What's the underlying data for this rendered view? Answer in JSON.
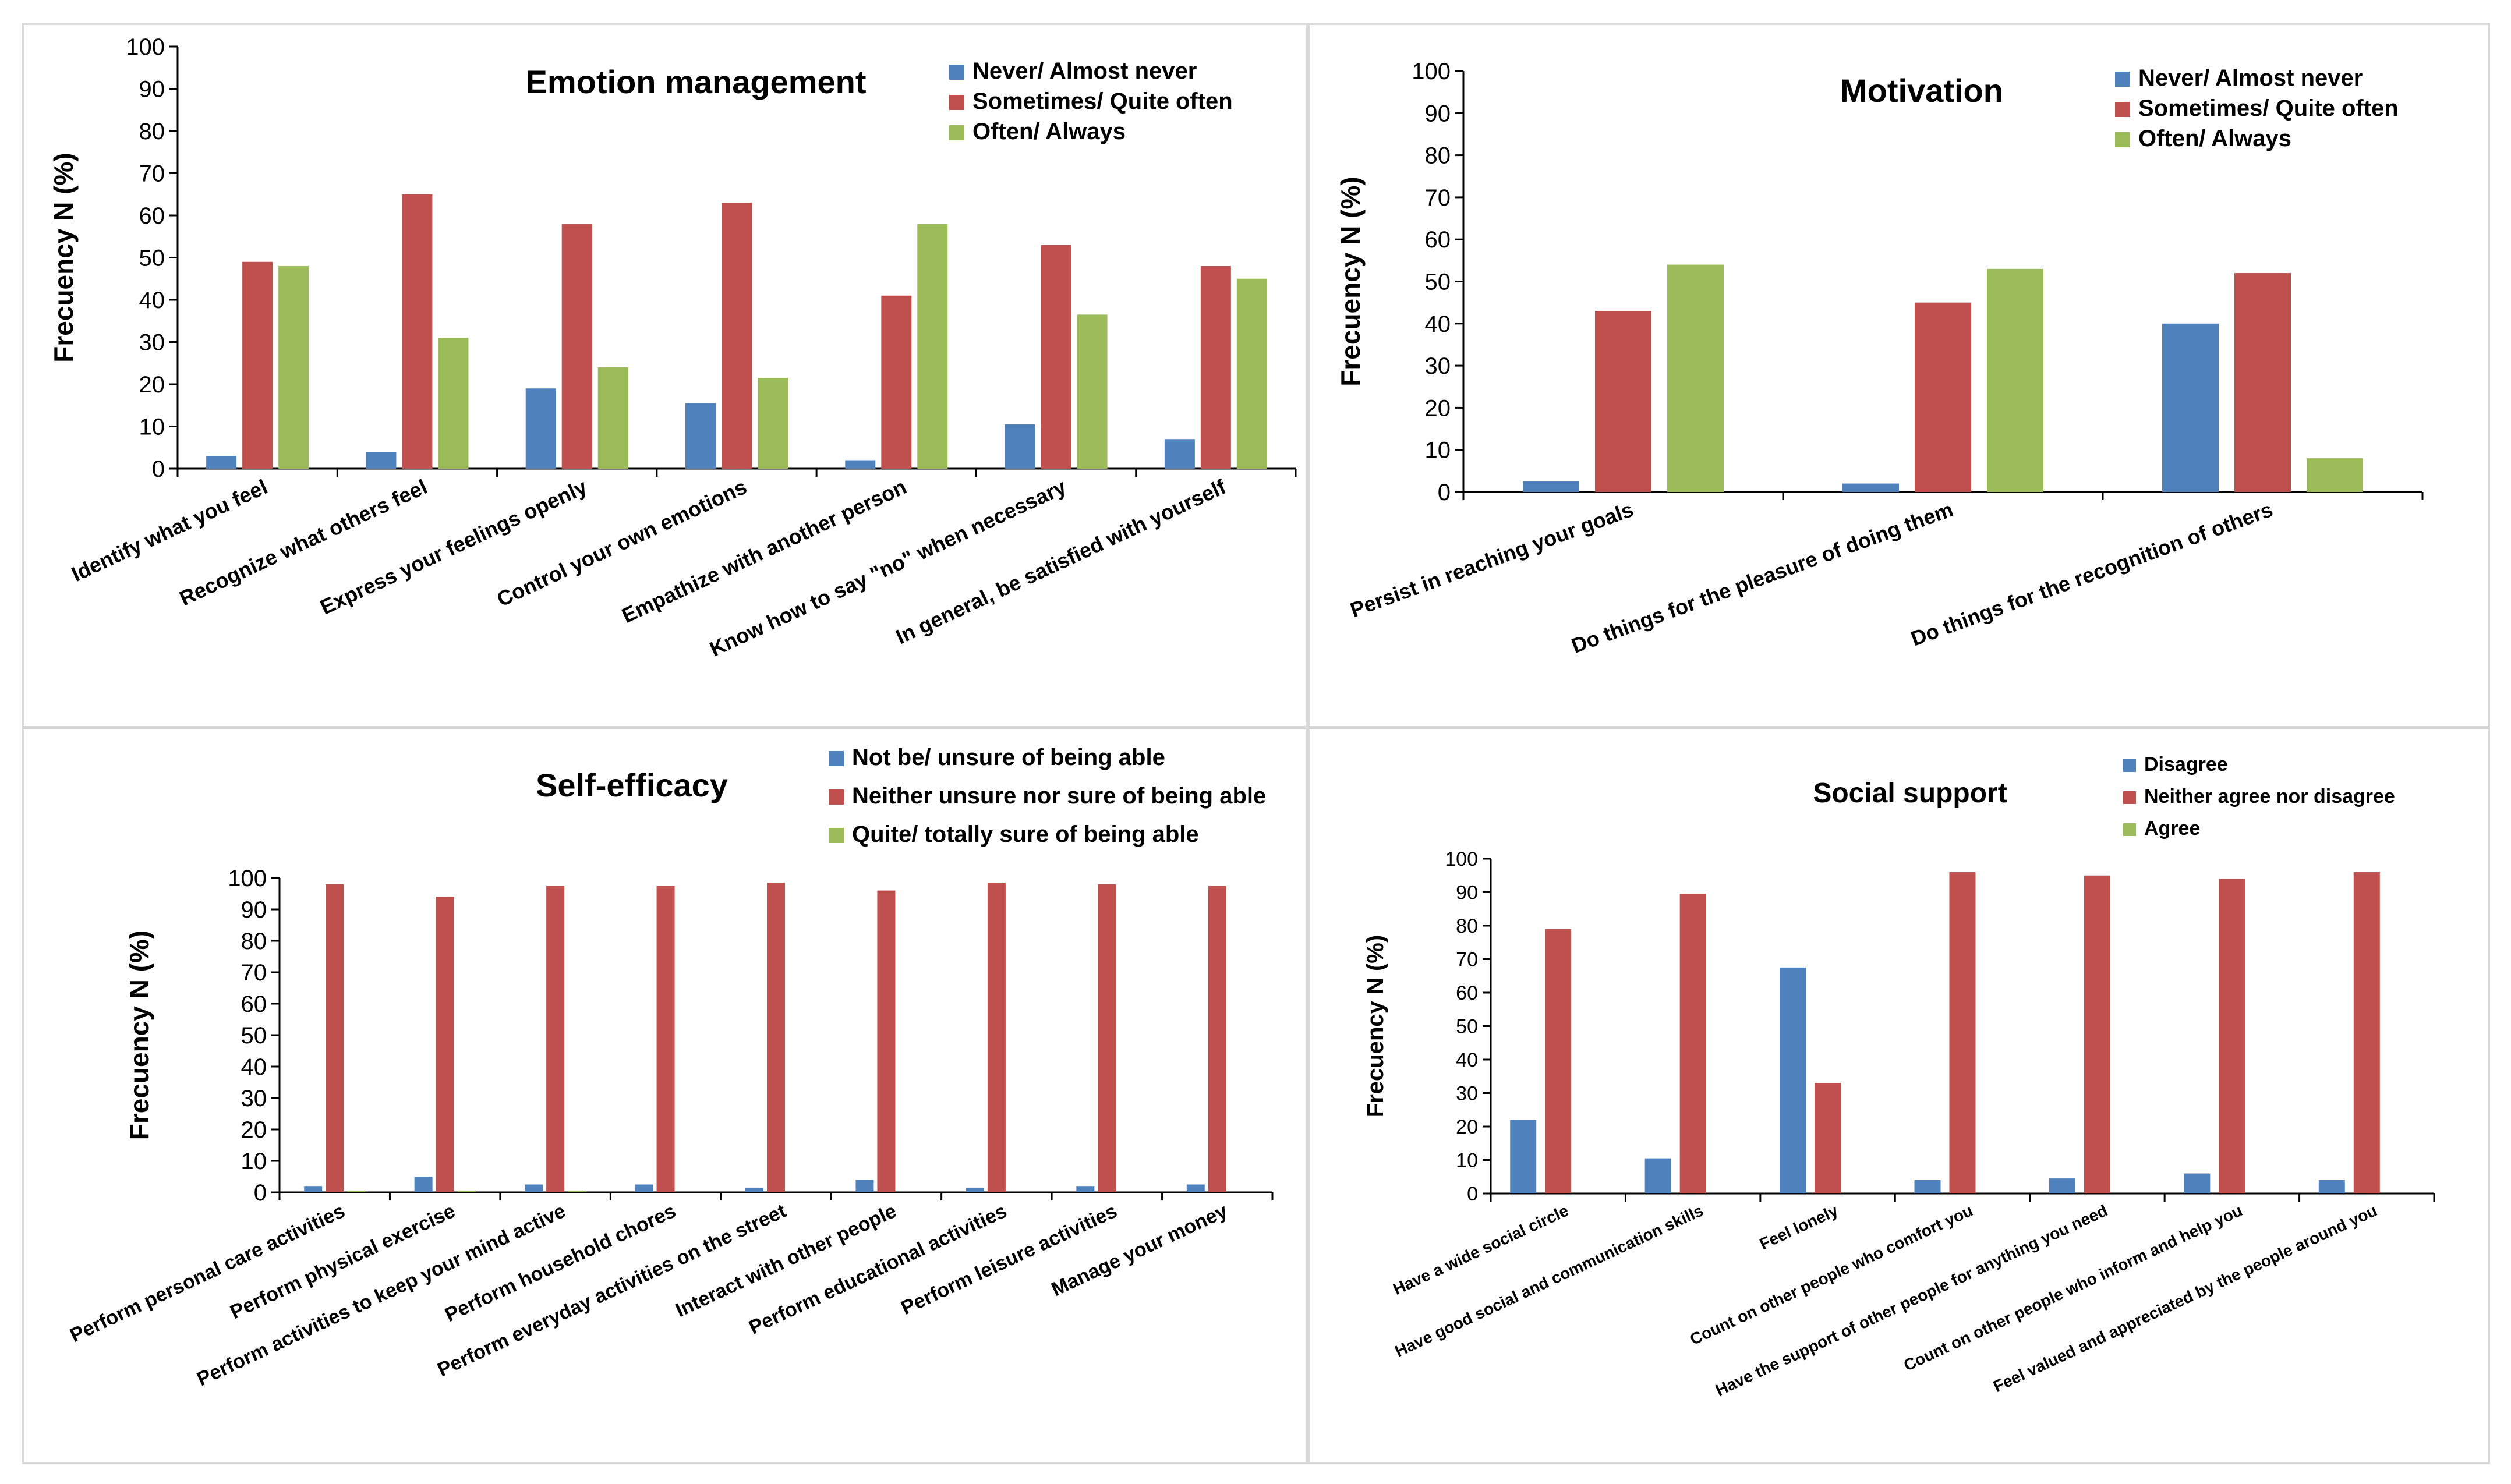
{
  "chart_data": [
    {
      "type": "bar",
      "title": "Emotion management",
      "ylabel": "Frecuency N (%)",
      "ylim": [
        0,
        100
      ],
      "yticks": [
        0,
        10,
        20,
        30,
        40,
        50,
        60,
        70,
        80,
        90,
        100
      ],
      "categories": [
        "Identify what you feel",
        "Recognize what others feel",
        "Express your feelings openly",
        "Control your own emotions",
        "Empathize with another person",
        "Know how to say \"no\" when necessary",
        "In general, be satisfied with yourself"
      ],
      "series": [
        {
          "name": "Never/ Almost never",
          "color": "#4f81bd",
          "values": [
            3,
            4,
            19,
            15.5,
            2,
            10.5,
            7
          ]
        },
        {
          "name": "Sometimes/ Quite often",
          "color": "#c0504d",
          "values": [
            49,
            65,
            58,
            63,
            41,
            53,
            48
          ]
        },
        {
          "name": "Often/ Always",
          "color": "#9bbb59",
          "values": [
            48,
            31,
            24,
            21.5,
            58,
            36.5,
            45
          ]
        }
      ],
      "legend": "top-right"
    },
    {
      "type": "bar",
      "title": "Motivation",
      "ylabel": "Frecuency N (%)",
      "ylim": [
        0,
        100
      ],
      "yticks": [
        0,
        10,
        20,
        30,
        40,
        50,
        60,
        70,
        80,
        90,
        100
      ],
      "categories": [
        "Persist in reaching your goals",
        "Do things for the pleasure of doing them",
        "Do things for the recognition of others"
      ],
      "series": [
        {
          "name": "Never/ Almost never",
          "color": "#4f81bd",
          "values": [
            2.5,
            2,
            40
          ]
        },
        {
          "name": "Sometimes/ Quite often",
          "color": "#c0504d",
          "values": [
            43,
            45,
            52
          ]
        },
        {
          "name": "Often/ Always",
          "color": "#9bbb59",
          "values": [
            54,
            53,
            8
          ]
        }
      ],
      "legend": "top-right"
    },
    {
      "type": "bar",
      "title": "Self-efficacy",
      "ylabel": "Frecuency N (%)",
      "ylim": [
        0,
        100
      ],
      "yticks": [
        0,
        10,
        20,
        30,
        40,
        50,
        60,
        70,
        80,
        90,
        100
      ],
      "categories": [
        "Perform personal care activities",
        "Perform physical exercise",
        "Perform activities to keep your mind active",
        "Perform household chores",
        "Perform everyday activities on the street",
        "Interact with other people",
        "Perform educational activities",
        "Perform leisure activities",
        "Manage your money"
      ],
      "series": [
        {
          "name": "Not be/ unsure of being able",
          "color": "#4f81bd",
          "values": [
            2,
            5,
            2.5,
            2.5,
            1.5,
            4,
            1.5,
            2,
            2.5
          ]
        },
        {
          "name": "Neither unsure nor sure of being able",
          "color": "#c0504d",
          "values": [
            98,
            94,
            97.5,
            97.5,
            98.5,
            96,
            98.5,
            98,
            97.5
          ]
        },
        {
          "name": "Quite/ totally sure of being able",
          "color": "#9bbb59",
          "values": [
            0.5,
            0.5,
            0.5,
            0,
            0,
            0,
            0,
            0,
            0
          ]
        }
      ],
      "legend": "top-right"
    },
    {
      "type": "bar",
      "title": "Social support",
      "ylabel": "Frecuency N (%)",
      "ylim": [
        0,
        100
      ],
      "yticks": [
        0,
        10,
        20,
        30,
        40,
        50,
        60,
        70,
        80,
        90,
        100
      ],
      "categories": [
        "Have a wide social circle",
        "Have good social and communication skills",
        "Feel lonely",
        "Count on other people who comfort you",
        "Have the support of other people for anything you need",
        "Count on other people who inform and help you",
        "Feel valued and appreciated by the people around you"
      ],
      "series": [
        {
          "name": "Disagree",
          "color": "#4f81bd",
          "values": [
            22,
            10.5,
            67.5,
            4,
            4.5,
            6,
            4
          ]
        },
        {
          "name": "Neither agree nor disagree",
          "color": "#c0504d",
          "values": [
            79,
            89.5,
            33,
            96,
            95,
            94,
            96
          ]
        },
        {
          "name": "Agree",
          "color": "#9bbb59",
          "values": [
            0,
            0,
            0,
            0,
            0,
            0,
            0
          ]
        }
      ],
      "legend": "top-right"
    }
  ]
}
